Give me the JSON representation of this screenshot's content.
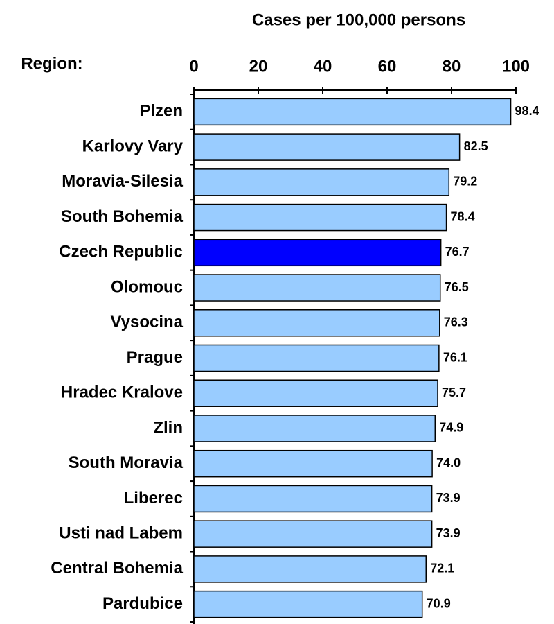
{
  "chart_data": {
    "type": "barh",
    "title": "Cases per 100,000 persons",
    "ylabel": "Region:",
    "categories": [
      "Plzen",
      "Karlovy Vary",
      "Moravia-Silesia",
      "South Bohemia",
      "Czech Republic",
      "Olomouc",
      "Vysocina",
      "Prague",
      "Hradec Kralove",
      "Zlin",
      "South Moravia",
      "Liberec",
      "Usti nad Labem",
      "Central Bohemia",
      "Pardubice"
    ],
    "values": [
      98.4,
      82.5,
      79.2,
      78.4,
      76.7,
      76.5,
      76.3,
      76.1,
      75.7,
      74.9,
      74.0,
      73.9,
      73.9,
      72.1,
      70.9
    ],
    "value_labels": [
      "98.4",
      "82.5",
      "79.2",
      "78.4",
      "76.7",
      "76.5",
      "76.3",
      "76.1",
      "75.7",
      "74.9",
      "74.0",
      "73.9",
      "73.9",
      "72.1",
      "70.9"
    ],
    "colors": [
      "#99ccff",
      "#99ccff",
      "#99ccff",
      "#99ccff",
      "#0000ff",
      "#99ccff",
      "#99ccff",
      "#99ccff",
      "#99ccff",
      "#99ccff",
      "#99ccff",
      "#99ccff",
      "#99ccff",
      "#99ccff",
      "#99ccff"
    ],
    "xlim": [
      0,
      100
    ],
    "xticks": [
      0,
      20,
      40,
      60,
      80,
      100
    ],
    "xaxis_position": "top",
    "grid": false
  }
}
